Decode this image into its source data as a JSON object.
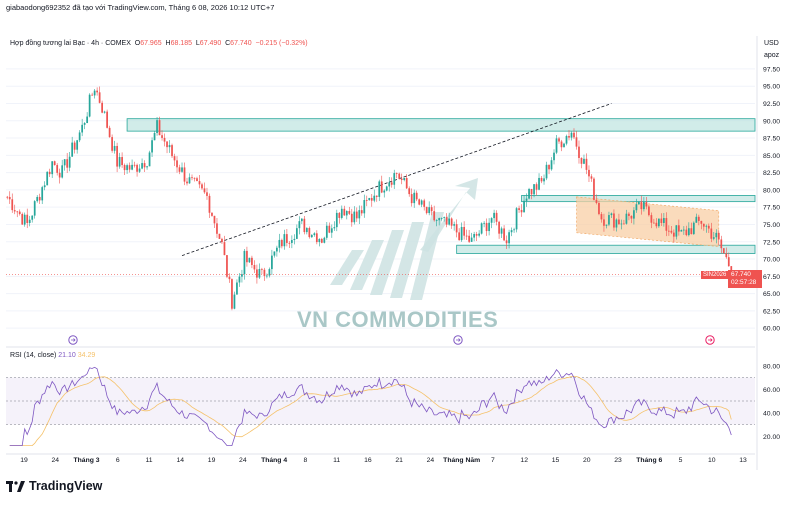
{
  "header": {
    "top_line": "giabaodong692352 đã tạo với TradingView.com, Tháng 6 08, 2026 10:12 UTC+7",
    "symbol": "Hợp đồng tương lai Bạc · 4h · COMEX",
    "ohlc": {
      "open_label": "O",
      "open": "67.965",
      "high_label": "H",
      "high": "68.185",
      "low_label": "L",
      "low": "67.490",
      "close_label": "C",
      "close": "67.740",
      "change": "−0.215 (−0.32%)"
    },
    "currency": "USD",
    "unit": "apoz"
  },
  "price_tag": {
    "symbol": "SIN2026",
    "price": "67.740",
    "countdown": "02:57:28"
  },
  "rsi_legend": {
    "name": "RSI (14, close)",
    "value": "21.10",
    "ma": "34.29"
  },
  "watermark": "VN COMMODITIES",
  "brand": {
    "name": "TradingView",
    "icon": "tradingview-logo-icon"
  },
  "colors": {
    "up": "#26a69a",
    "down": "#ef5350",
    "rsi": "#7e57c2",
    "rsi_ma": "#f5c26b",
    "zone": "#b2dfdb",
    "channel": "#f8cfa6"
  },
  "chart_data": {
    "type": "candlestick",
    "title": "Hợp đồng tương lai Bạc · 4h · COMEX",
    "price_axis": {
      "ticks": [
        60.0,
        62.5,
        65.0,
        67.5,
        70.0,
        72.5,
        75.0,
        77.5,
        80.0,
        82.5,
        85.0,
        87.5,
        90.0,
        92.5,
        95.0,
        97.5
      ],
      "tick_labels": [
        "60.00",
        "62.50",
        "65.00",
        "67.50",
        "70.00",
        "72.50",
        "75.00",
        "77.50",
        "80.00",
        "82.50",
        "85.00",
        "87.50",
        "90.00",
        "92.50",
        "95.00",
        "97.50"
      ],
      "range": [
        58.0,
        98.5
      ]
    },
    "time_axis": {
      "labels": [
        "19",
        "24",
        "Tháng 3",
        "6",
        "11",
        "14",
        "19",
        "24",
        "Tháng 4",
        "8",
        "11",
        "16",
        "21",
        "24",
        "Tháng Năm",
        "7",
        "12",
        "15",
        "20",
        "23",
        "Tháng 6",
        "5",
        "10",
        "13"
      ],
      "bold": [
        "Tháng 3",
        "Tháng 4",
        "Tháng Năm",
        "Tháng 6"
      ]
    },
    "anchors": [
      {
        "i": 0,
        "p": 79.0
      },
      {
        "i": 8,
        "p": 75.0
      },
      {
        "i": 18,
        "p": 84.0
      },
      {
        "i": 22,
        "p": 82.5
      },
      {
        "i": 30,
        "p": 89.0
      },
      {
        "i": 35,
        "p": 95.0
      },
      {
        "i": 38,
        "p": 92.0
      },
      {
        "i": 44,
        "p": 84.0
      },
      {
        "i": 50,
        "p": 83.0
      },
      {
        "i": 56,
        "p": 84.5
      },
      {
        "i": 60,
        "p": 89.0
      },
      {
        "i": 66,
        "p": 85.0
      },
      {
        "i": 72,
        "p": 81.5
      },
      {
        "i": 80,
        "p": 79.0
      },
      {
        "i": 86,
        "p": 72.0
      },
      {
        "i": 90,
        "p": 64.0
      },
      {
        "i": 95,
        "p": 70.0
      },
      {
        "i": 102,
        "p": 67.5
      },
      {
        "i": 110,
        "p": 72.5
      },
      {
        "i": 118,
        "p": 75.0
      },
      {
        "i": 126,
        "p": 73.0
      },
      {
        "i": 134,
        "p": 77.5
      },
      {
        "i": 140,
        "p": 76.0
      },
      {
        "i": 148,
        "p": 80.0
      },
      {
        "i": 156,
        "p": 82.5
      },
      {
        "i": 162,
        "p": 79.0
      },
      {
        "i": 170,
        "p": 76.0
      },
      {
        "i": 178,
        "p": 74.5
      },
      {
        "i": 186,
        "p": 72.5
      },
      {
        "i": 194,
        "p": 76.0
      },
      {
        "i": 200,
        "p": 73.0
      },
      {
        "i": 208,
        "p": 79.5
      },
      {
        "i": 214,
        "p": 81.0
      },
      {
        "i": 220,
        "p": 86.5
      },
      {
        "i": 226,
        "p": 88.5
      },
      {
        "i": 232,
        "p": 83.0
      },
      {
        "i": 238,
        "p": 76.0
      },
      {
        "i": 246,
        "p": 75.5
      },
      {
        "i": 254,
        "p": 77.5
      },
      {
        "i": 262,
        "p": 75.0
      },
      {
        "i": 270,
        "p": 73.5
      },
      {
        "i": 278,
        "p": 75.5
      },
      {
        "i": 284,
        "p": 73.0
      },
      {
        "i": 290,
        "p": 68.5
      }
    ],
    "last_price": 67.74,
    "zones": [
      {
        "from_i": 48,
        "to_i": 300,
        "low": 88.5,
        "high": 90.3
      },
      {
        "from_i": 206,
        "to_i": 300,
        "low": 78.3,
        "high": 79.2
      },
      {
        "from_i": 180,
        "to_i": 300,
        "low": 70.8,
        "high": 72.0
      }
    ],
    "channel": {
      "from_i": 228,
      "to_i": 285,
      "top_start": 79.0,
      "top_end": 77.0,
      "bottom_start": 73.8,
      "bottom_end": 71.8
    },
    "trendline": {
      "from_i": 70,
      "from_p": 70.5,
      "to_i": 242,
      "to_p": 92.5
    },
    "rsi": {
      "axis_ticks": [
        20.0,
        40.0,
        60.0,
        80.0
      ],
      "axis_labels": [
        "20.00",
        "40.00",
        "60.00",
        "80.00"
      ],
      "upper_band": 70,
      "lower_band": 30,
      "mid": 50,
      "last": 21.1,
      "last_ma": 34.29
    }
  }
}
